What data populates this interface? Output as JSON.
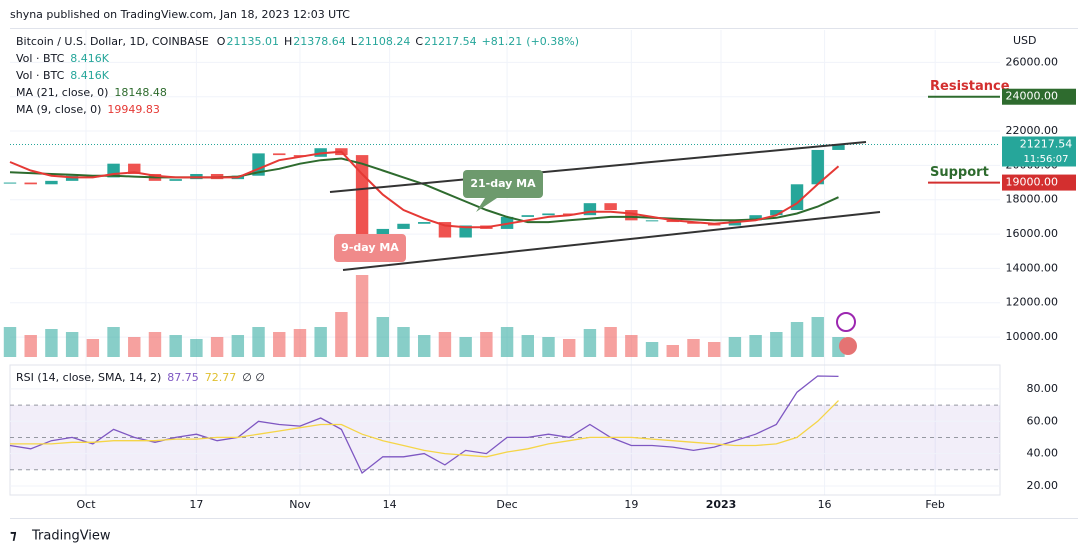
{
  "header": {
    "published": "shyna published on TradingView.com, Jan 18, 2023 12:03 UTC"
  },
  "footer": {
    "brand": "TradingView"
  },
  "chart_data": {
    "type": "candlestick",
    "symbol": "Bitcoin / U.S. Dollar, 1D, COINBASE",
    "ohlc": [
      {
        "name": "O",
        "value": 21135.01
      },
      {
        "name": "H",
        "value": 21378.64
      },
      {
        "name": "L",
        "value": 21108.24
      },
      {
        "name": "C",
        "value": 21217.54
      }
    ],
    "change": {
      "value": 81.21,
      "label": "+81.21"
    },
    "change_pct": {
      "value": 0.38,
      "label": "(+0.38%)"
    },
    "volume_legend": [
      {
        "name": "Vol · BTC",
        "value": {
          "value": 8416,
          "label": "8.416K"
        }
      },
      {
        "name": "Vol · BTC",
        "value": {
          "value": 8416,
          "label": "8.416K"
        }
      }
    ],
    "currency": "USD",
    "countdown": "11:56:07",
    "series": [
      {
        "name": "Bitcoin / U.S. Dollar",
        "up_color": "#26a69a",
        "down_color": "#ef5350",
        "values": [
          19000,
          18900,
          19100,
          19400,
          19300,
          20100,
          19500,
          19100,
          19200,
          19500,
          19200,
          19400,
          20700,
          20600,
          20500,
          21000,
          20600,
          16000,
          16300,
          16600,
          16700,
          15800,
          16500,
          16300,
          17000,
          17100,
          17200,
          17100,
          17800,
          17400,
          16800,
          16800,
          16700,
          16600,
          16500,
          16800,
          17100,
          17400,
          18900,
          20900,
          21217.54
        ]
      },
      {
        "name": "MA (21, close, 0)",
        "color": "#2e6b2e",
        "legend_value": 18148.48,
        "values": [
          19600,
          19550,
          19500,
          19450,
          19400,
          19400,
          19350,
          19300,
          19300,
          19300,
          19300,
          19350,
          19600,
          19800,
          20100,
          20300,
          20400,
          20100,
          19700,
          19300,
          18900,
          18400,
          17900,
          17400,
          17000,
          16700,
          16700,
          16800,
          16900,
          17000,
          17000,
          16950,
          16900,
          16850,
          16800,
          16800,
          16850,
          16950,
          17200,
          17600,
          18148.48
        ]
      },
      {
        "name": "MA (9, close, 0)",
        "color": "#e53935",
        "legend_value": 19949.83,
        "values": [
          20200,
          19700,
          19400,
          19300,
          19300,
          19500,
          19600,
          19400,
          19300,
          19300,
          19300,
          19300,
          19800,
          20300,
          20500,
          20700,
          20800,
          19500,
          18300,
          17400,
          16900,
          16500,
          16400,
          16400,
          16600,
          16800,
          17000,
          17100,
          17300,
          17300,
          17200,
          17000,
          16800,
          16700,
          16600,
          16700,
          16800,
          17100,
          17800,
          18900,
          19949.83
        ]
      }
    ],
    "volume": {
      "ylim": [
        0,
        100
      ],
      "values": [
        30,
        22,
        28,
        25,
        18,
        30,
        20,
        25,
        22,
        18,
        20,
        22,
        30,
        25,
        28,
        30,
        45,
        82,
        40,
        30,
        22,
        25,
        20,
        25,
        30,
        22,
        20,
        18,
        28,
        30,
        22,
        15,
        12,
        18,
        15,
        20,
        22,
        25,
        35,
        40,
        20
      ]
    },
    "ylim": [
      8840,
      27770
    ],
    "yticks": [
      {
        "value": 10000,
        "label": "10000.00"
      },
      {
        "value": 12000,
        "label": "12000.00"
      },
      {
        "value": 14000,
        "label": "14000.00"
      },
      {
        "value": 16000,
        "label": "16000.00"
      },
      {
        "value": 18000,
        "label": "18000.00"
      },
      {
        "value": 20000,
        "label": "20000.00"
      },
      {
        "value": 22000,
        "label": "22000.00"
      },
      {
        "value": 24000,
        "label": "24000.00"
      },
      {
        "value": 26000,
        "label": "26000.00"
      }
    ],
    "xlim": [
      0,
      47.8
    ],
    "xticks": [
      {
        "value": 3.67,
        "label": "Oct"
      },
      {
        "value": 9,
        "label": "17"
      },
      {
        "value": 14,
        "label": "Nov"
      },
      {
        "value": 18.33,
        "label": "14"
      },
      {
        "value": 24,
        "label": "Dec"
      },
      {
        "value": 30,
        "label": "19"
      },
      {
        "value": 34.33,
        "label": "2023"
      },
      {
        "value": 39.33,
        "label": "16"
      },
      {
        "value": 44.67,
        "label": "Feb"
      }
    ],
    "levels": [
      {
        "name": "Resistance",
        "color": "#2e6b2e",
        "text_color": "#d32f2f",
        "price": {
          "value": 24000,
          "label": "24000.00"
        }
      },
      {
        "name": "Support",
        "color": "#d32f2f",
        "text_color": "#2e6b2e",
        "price": {
          "value": 19000,
          "label": "19000.00"
        }
      }
    ],
    "annotations": [
      "21-day MA",
      "9-day MA"
    ],
    "rsi": {
      "name": "RSI (14, close, SMA, 14, 2)",
      "legend_values": [
        87.75,
        72.77
      ],
      "extra": "∅ ∅",
      "ylim": [
        14.4,
        94.8
      ],
      "yticks": [
        {
          "value": 20,
          "label": "20.00"
        },
        {
          "value": 40,
          "label": "40.00"
        },
        {
          "value": 60,
          "label": "60.00"
        },
        {
          "value": 80,
          "label": "80.00"
        }
      ],
      "bands": [
        70,
        50,
        30
      ],
      "series": [
        {
          "name": "RSI",
          "color": "#7e57c2",
          "values": [
            45,
            43,
            48,
            50,
            46,
            55,
            50,
            47,
            50,
            52,
            48,
            50,
            60,
            58,
            57,
            62,
            55,
            28,
            38,
            38,
            40,
            33,
            42,
            40,
            50,
            50,
            52,
            50,
            58,
            50,
            45,
            45,
            44,
            42,
            44,
            48,
            52,
            58,
            78,
            88,
            87.75
          ]
        },
        {
          "name": "RSI-based MA",
          "color": "#f5d547",
          "values": [
            46,
            46,
            46,
            47,
            47,
            48,
            48,
            48,
            49,
            49,
            50,
            50,
            52,
            54,
            56,
            58,
            58,
            52,
            48,
            45,
            42,
            40,
            39,
            38,
            41,
            43,
            46,
            48,
            50,
            50,
            50,
            49,
            48,
            47,
            46,
            45,
            45,
            46,
            50,
            60,
            72.77
          ]
        }
      ]
    }
  }
}
